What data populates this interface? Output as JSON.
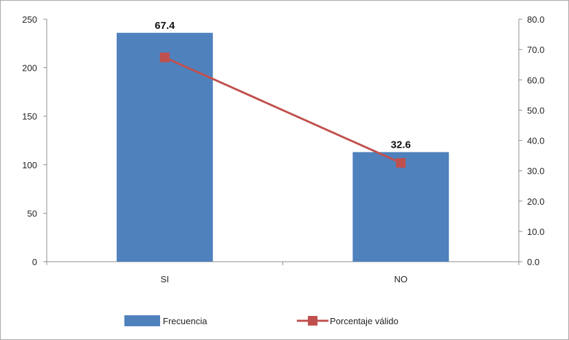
{
  "chart_data": {
    "type": "bar",
    "categories": [
      "SI",
      "NO"
    ],
    "series": [
      {
        "name": "Frecuencia",
        "type": "bar",
        "axis": "left",
        "values": [
          236,
          113
        ],
        "color": "#4f81bd",
        "data_labels": [
          "67.4",
          "32.6"
        ]
      },
      {
        "name": "Porcentaje válido",
        "type": "line",
        "axis": "right",
        "values": [
          67.4,
          32.6
        ],
        "color": "#c0504d"
      }
    ],
    "y_left": {
      "min": 0,
      "max": 250,
      "step": 50,
      "ticks": [
        "0",
        "50",
        "100",
        "150",
        "200",
        "250"
      ]
    },
    "y_right": {
      "min": 0,
      "max": 80,
      "step": 10,
      "ticks": [
        "0.0",
        "10.0",
        "20.0",
        "30.0",
        "40.0",
        "50.0",
        "60.0",
        "70.0",
        "80.0"
      ]
    },
    "grid": false,
    "legend": "bottom",
    "title": "",
    "xlabel": "",
    "ylabel": ""
  }
}
